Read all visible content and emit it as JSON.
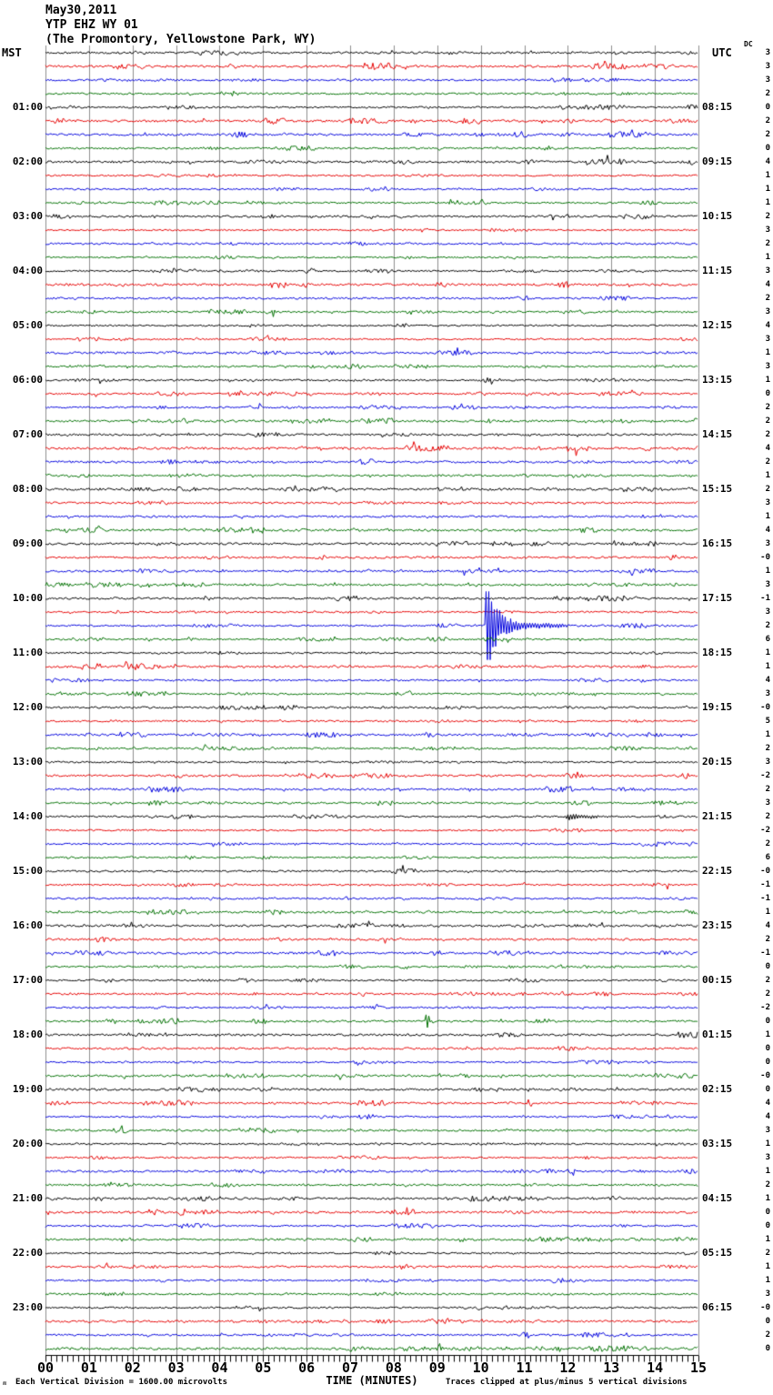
{
  "header": {
    "date": "May30,2011",
    "station": "YTP EHZ WY 01",
    "location": "(The Promontory, Yellowstone Park, WY)"
  },
  "left_axis": {
    "title": "MST",
    "labels": [
      {
        "row": 4,
        "text": "01:00"
      },
      {
        "row": 8,
        "text": "02:00"
      },
      {
        "row": 12,
        "text": "03:00"
      },
      {
        "row": 16,
        "text": "04:00"
      },
      {
        "row": 20,
        "text": "05:00"
      },
      {
        "row": 24,
        "text": "06:00"
      },
      {
        "row": 28,
        "text": "07:00"
      },
      {
        "row": 32,
        "text": "08:00"
      },
      {
        "row": 36,
        "text": "09:00"
      },
      {
        "row": 40,
        "text": "10:00"
      },
      {
        "row": 44,
        "text": "11:00"
      },
      {
        "row": 48,
        "text": "12:00"
      },
      {
        "row": 52,
        "text": "13:00"
      },
      {
        "row": 56,
        "text": "14:00"
      },
      {
        "row": 60,
        "text": "15:00"
      },
      {
        "row": 64,
        "text": "16:00"
      },
      {
        "row": 68,
        "text": "17:00"
      },
      {
        "row": 72,
        "text": "18:00"
      },
      {
        "row": 76,
        "text": "19:00"
      },
      {
        "row": 80,
        "text": "20:00"
      },
      {
        "row": 84,
        "text": "21:00"
      },
      {
        "row": 88,
        "text": "22:00"
      },
      {
        "row": 92,
        "text": "23:00"
      }
    ]
  },
  "right_axis": {
    "title": "UTC",
    "labels": [
      {
        "row": 4,
        "text": "08:15"
      },
      {
        "row": 8,
        "text": "09:15"
      },
      {
        "row": 12,
        "text": "10:15"
      },
      {
        "row": 16,
        "text": "11:15"
      },
      {
        "row": 20,
        "text": "12:15"
      },
      {
        "row": 24,
        "text": "13:15"
      },
      {
        "row": 28,
        "text": "14:15"
      },
      {
        "row": 32,
        "text": "15:15"
      },
      {
        "row": 36,
        "text": "16:15"
      },
      {
        "row": 40,
        "text": "17:15"
      },
      {
        "row": 44,
        "text": "18:15"
      },
      {
        "row": 48,
        "text": "19:15"
      },
      {
        "row": 52,
        "text": "20:15"
      },
      {
        "row": 56,
        "text": "21:15"
      },
      {
        "row": 60,
        "text": "22:15"
      },
      {
        "row": 64,
        "text": "23:15"
      },
      {
        "row": 68,
        "text": "00:15"
      },
      {
        "row": 72,
        "text": "01:15"
      },
      {
        "row": 76,
        "text": "02:15"
      },
      {
        "row": 80,
        "text": "03:15"
      },
      {
        "row": 84,
        "text": "04:15"
      },
      {
        "row": 88,
        "text": "05:15"
      },
      {
        "row": 92,
        "text": "06:15"
      }
    ]
  },
  "dc_column": {
    "title": "DC"
  },
  "x_axis": {
    "title": "TIME (MINUTES)",
    "tick_labels": [
      "00",
      "01",
      "02",
      "03",
      "04",
      "05",
      "06",
      "07",
      "08",
      "09",
      "10",
      "11",
      "12",
      "13",
      "14",
      "15"
    ]
  },
  "footer": {
    "left": "Each Vertical Division = 1600.00 microvolts",
    "right": "Traces clipped at plus/minus 5 vertical divisions",
    "corner_mark": "ʍ"
  },
  "colors": {
    "trace_cycle": [
      "#000000",
      "#e60000",
      "#0000dd",
      "#007100"
    ],
    "grid": "#8e8e8e",
    "axis": "#000000",
    "background": "#ffffff"
  },
  "chart_data": {
    "type": "line",
    "subtype": "helicorder-seismogram",
    "title": "YTP EHZ WY 01 - May30,2011 - The Promontory, Yellowstone Park, WY",
    "xlabel": "TIME (MINUTES)",
    "x_range_minutes": [
      0,
      15
    ],
    "rows": 96,
    "minutes_per_row": 15,
    "first_row_mst": "00:00",
    "row_color_cycle": [
      "black",
      "red",
      "blue",
      "green"
    ],
    "hours_left_mst": [
      "01:00",
      "02:00",
      "03:00",
      "04:00",
      "05:00",
      "06:00",
      "07:00",
      "08:00",
      "09:00",
      "10:00",
      "11:00",
      "12:00",
      "13:00",
      "14:00",
      "15:00",
      "16:00",
      "17:00",
      "18:00",
      "19:00",
      "20:00",
      "21:00",
      "22:00",
      "23:00"
    ],
    "hours_right_utc": [
      "08:15",
      "09:15",
      "10:15",
      "11:15",
      "12:15",
      "13:15",
      "14:15",
      "15:15",
      "16:15",
      "17:15",
      "18:15",
      "19:15",
      "20:15",
      "21:15",
      "22:15",
      "23:15",
      "00:15",
      "01:15",
      "02:15",
      "03:15",
      "04:15",
      "05:15",
      "06:15"
    ],
    "vertical_division_microvolts": 1600.0,
    "clip_divisions": 5,
    "dc_offsets": [
      "3",
      "3",
      "3",
      "2",
      "0",
      "2",
      "2",
      "0",
      "4",
      "1",
      "1",
      "1",
      "2",
      "3",
      "2",
      "1",
      "3",
      "4",
      "2",
      "3",
      "4",
      "3",
      "1",
      "3",
      "1",
      "0",
      "2",
      "2",
      "2",
      "4",
      "2",
      "1",
      "2",
      "3",
      "1",
      "4",
      "3",
      "-0",
      "1",
      "3",
      "-1",
      "3",
      "2",
      "6",
      "1",
      "1",
      "4",
      "3",
      "-0",
      "5",
      "1",
      "2",
      "3",
      "-2",
      "2",
      "3",
      "2",
      "-2",
      "2",
      "6",
      "-0",
      "-1",
      "-1",
      "1",
      "4",
      "2",
      "-1",
      "0",
      "2",
      "2",
      "-2",
      "0",
      "1",
      "0",
      "0",
      "-0",
      "0",
      "4",
      "4",
      "3",
      "1",
      "3",
      "1",
      "2",
      "1",
      "0",
      "0",
      "1",
      "2",
      "1",
      "1",
      "3",
      "-0",
      "0",
      "2",
      "0"
    ],
    "events": [
      {
        "row": 16,
        "trace_mst": "04:00",
        "minute": 12.7,
        "duration_min": 0.9,
        "kind": "small-burst"
      },
      {
        "row": 38,
        "trace_mst": "09:30",
        "minute": 9.4,
        "duration_min": 1.25,
        "kind": "small-burst"
      },
      {
        "row": 42,
        "trace_mst": "10:30",
        "minute": 10.1,
        "duration_min": 1.9,
        "kind": "clipped-earthquake",
        "note": "large clipped spike with decaying coda"
      },
      {
        "row": 51,
        "trace_mst": "12:45",
        "minute": 3.55,
        "duration_min": 1.7,
        "kind": "tremor-burst"
      },
      {
        "row": 56,
        "trace_mst": "14:00",
        "minute": 11.9,
        "duration_min": 1.4,
        "kind": "small-earthquake"
      },
      {
        "row": 71,
        "trace_mst": "17:45",
        "minute": 8.74,
        "duration_min": 0.25,
        "kind": "spike"
      }
    ]
  }
}
